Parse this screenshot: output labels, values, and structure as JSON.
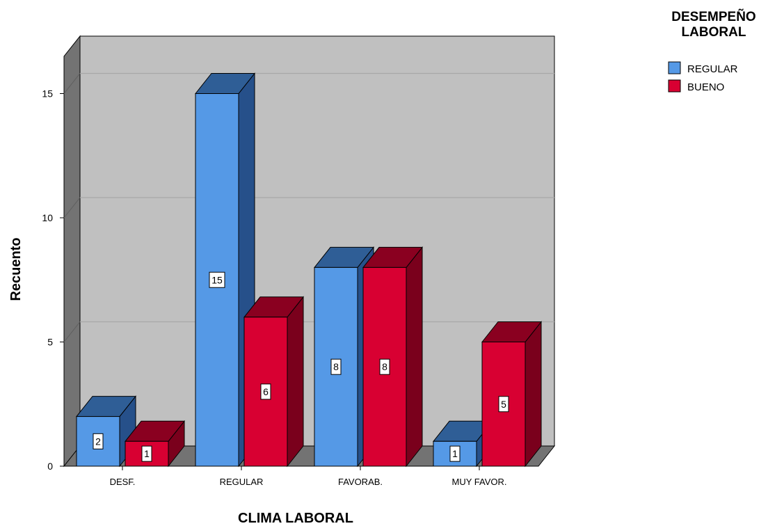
{
  "chart_data": {
    "type": "bar",
    "categories": [
      "DESF.",
      "REGULAR",
      "FAVORAB.",
      "MUY FAVOR."
    ],
    "series": [
      {
        "name": "REGULAR",
        "values": [
          2,
          15,
          8,
          1
        ],
        "color": "#5599e6",
        "top_color": "#2f5e96",
        "side_color": "#26508a"
      },
      {
        "name": "BUENO",
        "values": [
          1,
          6,
          8,
          5
        ],
        "color": "#d80032",
        "top_color": "#8a0020",
        "side_color": "#7a001c"
      }
    ],
    "xlabel": "CLIMA LABORAL",
    "ylabel": "Recuento",
    "ylim": [
      0,
      16.5
    ],
    "yticks": [
      0,
      5,
      10,
      15
    ],
    "grid": true,
    "data_labels": true,
    "legend_title_lines": [
      "DESEMPEÑO",
      "LABORAL"
    ],
    "legend_position": "top-right",
    "style": "3d",
    "wall_color": "#c0c0c0",
    "side_wall_color": "#737373"
  }
}
